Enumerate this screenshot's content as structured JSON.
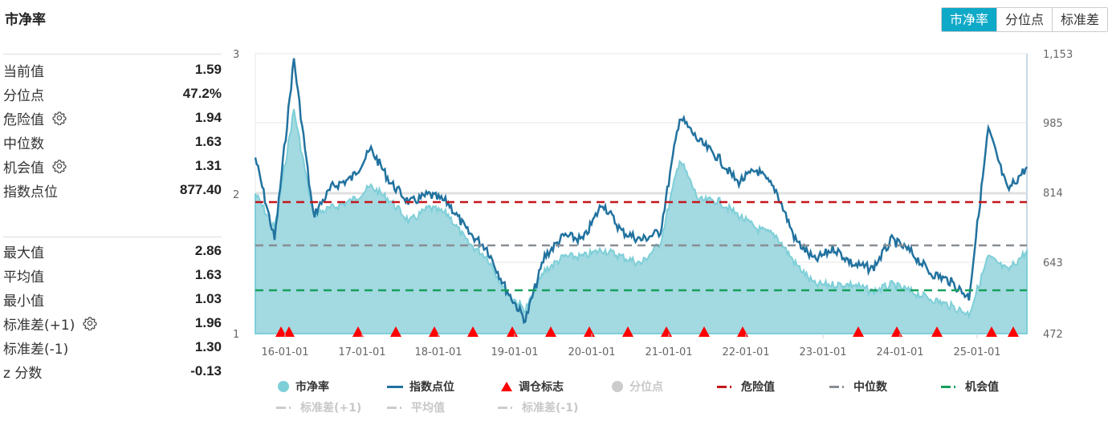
{
  "header": {
    "title": "市净率"
  },
  "tabs": [
    {
      "label": "市净率",
      "active": true
    },
    {
      "label": "分位点",
      "active": false
    },
    {
      "label": "标准差",
      "active": false
    }
  ],
  "stats_primary": [
    {
      "label": "当前值",
      "value": "1.59",
      "gear": false
    },
    {
      "label": "分位点",
      "value": "47.2%",
      "gear": false
    },
    {
      "label": "危险值",
      "value": "1.94",
      "gear": true
    },
    {
      "label": "中位数",
      "value": "1.63",
      "gear": false
    },
    {
      "label": "机会值",
      "value": "1.31",
      "gear": true
    },
    {
      "label": "指数点位",
      "value": "877.40",
      "gear": false
    }
  ],
  "stats_secondary": [
    {
      "label": "最大值",
      "value": "2.86",
      "gear": false
    },
    {
      "label": "平均值",
      "value": "1.63",
      "gear": false
    },
    {
      "label": "最小值",
      "value": "1.03",
      "gear": false
    },
    {
      "label": "标准差(+1)",
      "value": "1.96",
      "gear": true
    },
    {
      "label": "标准差(-1)",
      "value": "1.30",
      "gear": false
    },
    {
      "label": "z 分数",
      "value": "-0.13",
      "gear": false
    }
  ],
  "legend": [
    {
      "label": "市净率",
      "symbol": "circle",
      "color": "#7ecfd8",
      "active": true
    },
    {
      "label": "指数点位",
      "symbol": "line",
      "color": "#21729f",
      "active": true
    },
    {
      "label": "调仓标志",
      "symbol": "triangle",
      "color": "#ff0000",
      "active": true
    },
    {
      "label": "分位点",
      "symbol": "circle",
      "color": "#cccccc",
      "active": false
    },
    {
      "label": "危险值",
      "symbol": "dash",
      "color": "#c4161c",
      "active": true
    },
    {
      "label": "中位数",
      "symbol": "dash",
      "color": "#888e94",
      "active": true
    },
    {
      "label": "机会值",
      "symbol": "dash",
      "color": "#17a05d",
      "active": true
    },
    {
      "label": "标准差(+1)",
      "symbol": "dash",
      "color": "#cccccc",
      "active": false
    },
    {
      "label": "平均值",
      "symbol": "dash",
      "color": "#cccccc",
      "active": false
    },
    {
      "label": "标准差(-1)",
      "symbol": "dash",
      "color": "#cccccc",
      "active": false
    }
  ],
  "colors": {
    "accent": "#0fa9c8",
    "pb_area": "#a3d9e1",
    "pb_line": "#7ecfd8",
    "index_line": "#21729f",
    "danger": "#c4161c",
    "median": "#888e94",
    "opportunity": "#17a05d",
    "marker": "#ff0000"
  },
  "chart_data": {
    "type": "line",
    "title": "市净率",
    "xlabel": "",
    "ylabel_left": "市净率",
    "ylabel_right": "指数点位",
    "x_ticks": [
      "16-01-01",
      "17-01-01",
      "18-01-01",
      "19-01-01",
      "20-01-01",
      "21-01-01",
      "22-01-01",
      "23-01-01",
      "24-01-01",
      "25-01-01"
    ],
    "y_left_ticks": [
      "1",
      "2",
      "3"
    ],
    "y_left_range": [
      1,
      3
    ],
    "y_right_ticks": [
      "472",
      "643",
      "814",
      "985",
      "1,153"
    ],
    "y_right_range": [
      472,
      1153
    ],
    "x": [
      "15-07",
      "15-10",
      "16-01",
      "16-04",
      "16-07",
      "16-10",
      "17-01",
      "17-04",
      "17-07",
      "17-10",
      "18-01",
      "18-04",
      "18-07",
      "18-10",
      "19-01",
      "19-04",
      "19-07",
      "19-10",
      "20-01",
      "20-04",
      "20-07",
      "20-10",
      "21-01",
      "21-04",
      "21-07",
      "21-10",
      "22-01",
      "22-04",
      "22-07",
      "22-10",
      "23-01",
      "23-04",
      "23-07",
      "23-10",
      "24-01",
      "24-04",
      "24-07",
      "24-10",
      "25-01",
      "25-04",
      "25-07"
    ],
    "series": [
      {
        "name": "市净率",
        "type": "area",
        "values": [
          2.0,
          1.75,
          2.6,
          1.85,
          1.9,
          1.95,
          2.05,
          1.95,
          1.8,
          1.9,
          1.85,
          1.65,
          1.55,
          1.3,
          1.17,
          1.45,
          1.55,
          1.55,
          1.6,
          1.55,
          1.5,
          1.65,
          2.25,
          1.95,
          1.95,
          1.85,
          1.75,
          1.7,
          1.5,
          1.35,
          1.35,
          1.35,
          1.3,
          1.35,
          1.3,
          1.25,
          1.2,
          1.14,
          1.55,
          1.45,
          1.59
        ]
      },
      {
        "name": "指数点位",
        "type": "line",
        "values": [
          900,
          700,
          1140,
          760,
          830,
          850,
          920,
          840,
          790,
          810,
          790,
          720,
          680,
          580,
          505,
          660,
          710,
          700,
          790,
          720,
          700,
          720,
          1000,
          940,
          900,
          840,
          870,
          820,
          700,
          650,
          680,
          640,
          630,
          700,
          670,
          620,
          600,
          560,
          970,
          820,
          877.4
        ]
      },
      {
        "name": "危险值",
        "type": "hline",
        "value": 1.94
      },
      {
        "name": "中位数",
        "type": "hline",
        "value": 1.63
      },
      {
        "name": "机会值",
        "type": "hline",
        "value": 1.31
      }
    ],
    "markers": {
      "name": "调仓标志",
      "dates": [
        "15-12",
        "16-01",
        "16-12",
        "17-06",
        "17-12",
        "18-06",
        "18-12",
        "19-06",
        "19-12",
        "20-06",
        "20-12",
        "21-06",
        "21-12",
        "23-06",
        "23-12",
        "24-06",
        "25-02",
        "25-05"
      ]
    },
    "grid": true,
    "legend_position": "bottom"
  }
}
